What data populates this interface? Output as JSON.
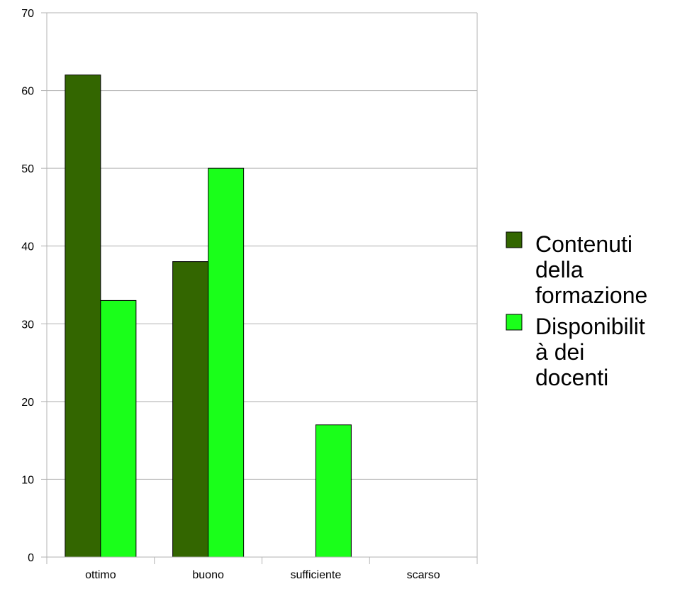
{
  "chart_data": {
    "type": "bar",
    "title": "",
    "xlabel": "",
    "ylabel": "",
    "categories": [
      "ottimo",
      "buono",
      "sufficiente",
      "scarso"
    ],
    "series": [
      {
        "name": "Contenuti della formazione",
        "values": [
          62,
          38,
          0,
          0
        ],
        "color": "#336600",
        "legend_lines": [
          "Contenuti",
          "della",
          "formazione"
        ]
      },
      {
        "name": "Disponibilità dei docenti",
        "values": [
          33,
          50,
          17,
          0
        ],
        "color": "#1aff1a",
        "legend_lines": [
          "Disponibilit",
          "à dei",
          "docenti"
        ]
      }
    ],
    "ylim": [
      0,
      70
    ],
    "yticks": [
      0,
      10,
      20,
      30,
      40,
      50,
      60,
      70
    ],
    "grid": true,
    "legend_position": "right"
  },
  "colors": {
    "grid": "#b3b3b3",
    "axis": "#b3b3b3",
    "bar_stroke": "#000000"
  }
}
